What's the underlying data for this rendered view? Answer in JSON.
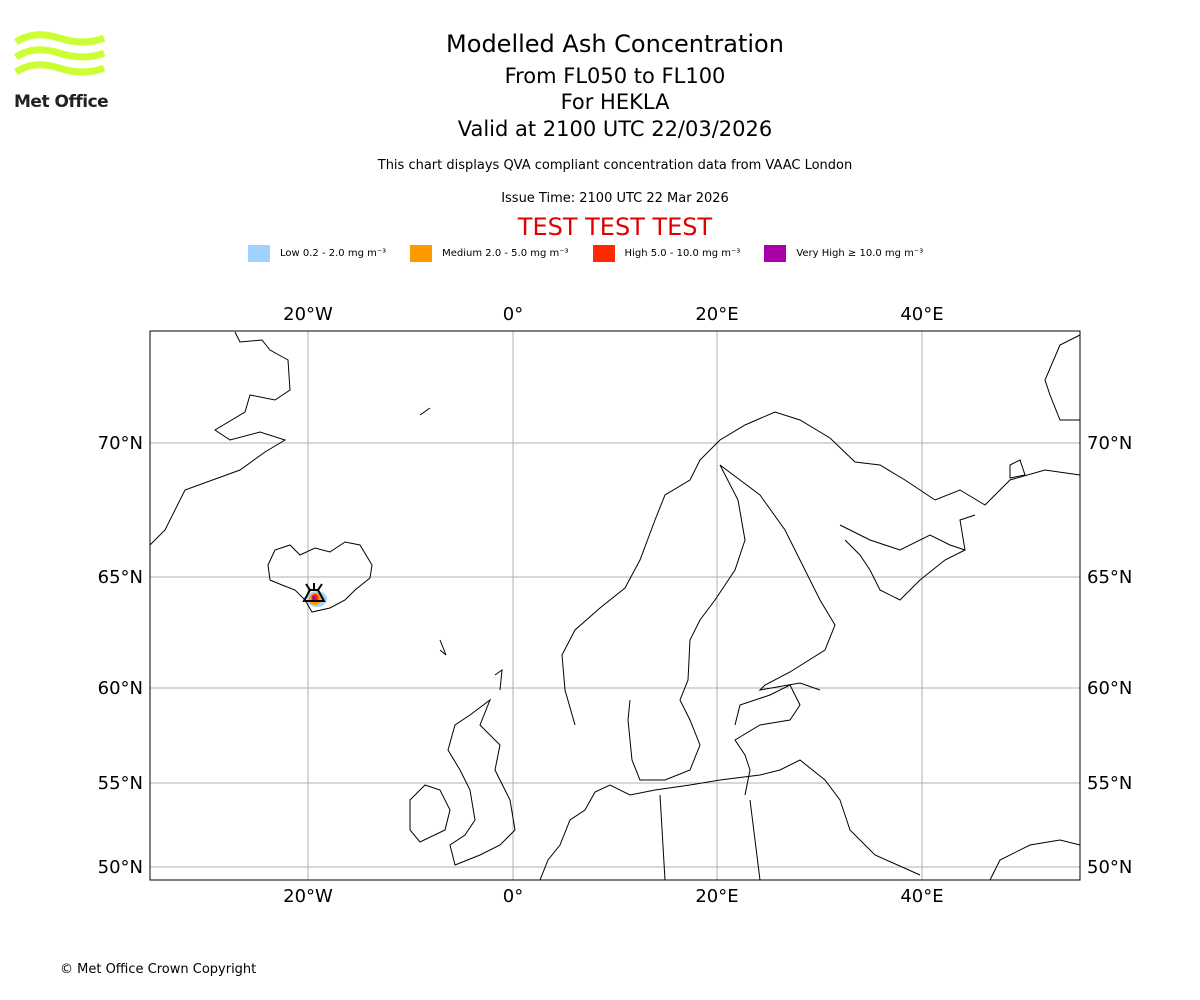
{
  "logo": {
    "text": "Met Office",
    "color": "#ccff33"
  },
  "title": "Modelled Ash Concentration",
  "subtitle_lines": [
    "From FL050 to FL100",
    "For HEKLA",
    "Valid at 2100 UTC 22/03/2026"
  ],
  "description": "This chart displays QVA compliant concentration data from VAAC London",
  "issue_time": "Issue Time: 2100 UTC 22 Mar 2026",
  "test_banner": "TEST TEST TEST",
  "legend": [
    {
      "label": "Low 0.2 - 2.0 mg m⁻³",
      "color": "#a0d2ff"
    },
    {
      "label": "Medium 2.0 - 5.0 mg m⁻³",
      "color": "#ff9900"
    },
    {
      "label": "High 5.0 - 10.0 mg m⁻³",
      "color": "#ff2800"
    },
    {
      "label": "Very High ≥ 10.0 mg m⁻³",
      "color": "#aa00aa"
    }
  ],
  "map": {
    "lon_labels": [
      "20°W",
      "0°",
      "20°E",
      "40°E"
    ],
    "lat_labels": [
      "70°N",
      "65°N",
      "60°N",
      "55°N",
      "50°N"
    ],
    "volcano": "HEKLA"
  },
  "footer": "© Met Office Crown Copyright"
}
